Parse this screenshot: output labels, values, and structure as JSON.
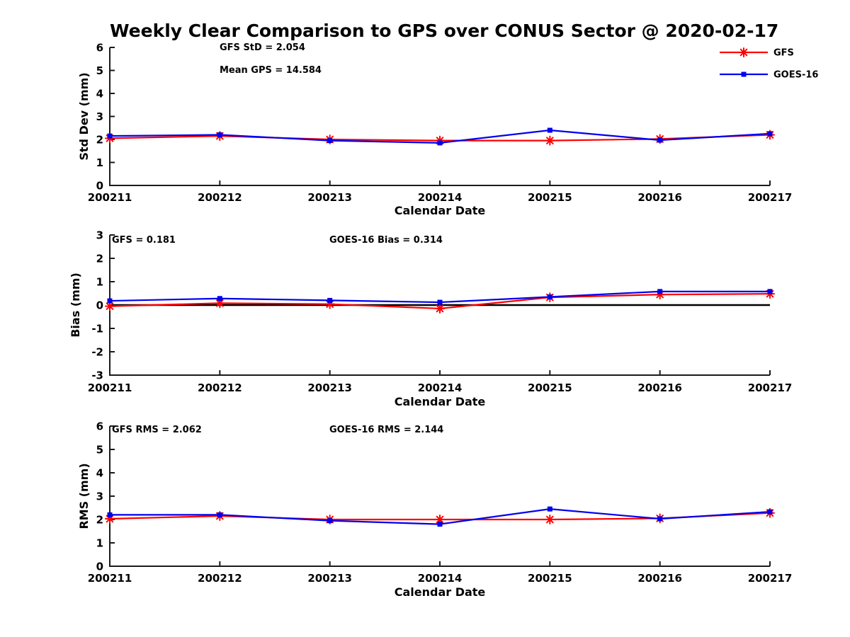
{
  "title": "Weekly Clear Comparison to GPS over CONUS Sector @ 2020-02-17",
  "colors": {
    "gfs": "#ff0000",
    "goes16": "#0000ee",
    "axis": "#1a1a1a",
    "zero_line": "#000000"
  },
  "legend": {
    "position": "top-right",
    "items": [
      {
        "label": "GFS",
        "color": "#ff0000",
        "marker": "asterisk"
      },
      {
        "label": "GOES-16",
        "color": "#0000ee",
        "marker": "square"
      }
    ]
  },
  "chart_data": [
    {
      "type": "line",
      "title": "",
      "xlabel": "Calendar Date",
      "ylabel": "Std Dev (mm)",
      "x": [
        "200211",
        "200212",
        "200213",
        "200214",
        "200215",
        "200216",
        "200217"
      ],
      "ylim": [
        0,
        6
      ],
      "yticks": [
        0,
        1,
        2,
        3,
        4,
        5,
        6
      ],
      "grid": false,
      "zero_line": false,
      "annotations": [
        "GFS StD = 2.054",
        "Mean GPS = 14.584"
      ],
      "series": [
        {
          "name": "GFS",
          "color": "#ff0000",
          "marker": "asterisk",
          "values": [
            2.05,
            2.15,
            2.0,
            1.95,
            1.95,
            2.02,
            2.2
          ]
        },
        {
          "name": "GOES-16",
          "color": "#0000ee",
          "marker": "square",
          "values": [
            2.15,
            2.2,
            1.95,
            1.85,
            2.4,
            1.97,
            2.25
          ]
        }
      ]
    },
    {
      "type": "line",
      "title": "",
      "xlabel": "Calendar Date",
      "ylabel": "Bias (mm)",
      "x": [
        "200211",
        "200212",
        "200213",
        "200214",
        "200215",
        "200216",
        "200217"
      ],
      "ylim": [
        -3,
        3
      ],
      "yticks": [
        -3,
        -2,
        -1,
        0,
        1,
        2,
        3
      ],
      "grid": false,
      "zero_line": true,
      "annotations": [
        "GFS = 0.181",
        "GOES-16 Bias  = 0.314"
      ],
      "series": [
        {
          "name": "GFS",
          "color": "#ff0000",
          "marker": "asterisk",
          "values": [
            -0.05,
            0.08,
            0.04,
            -0.15,
            0.33,
            0.45,
            0.48
          ]
        },
        {
          "name": "GOES-16",
          "color": "#0000ee",
          "marker": "square",
          "values": [
            0.18,
            0.28,
            0.2,
            0.12,
            0.35,
            0.58,
            0.58
          ]
        }
      ]
    },
    {
      "type": "line",
      "title": "",
      "xlabel": "Calendar Date",
      "ylabel": "RMS (mm)",
      "x": [
        "200211",
        "200212",
        "200213",
        "200214",
        "200215",
        "200216",
        "200217"
      ],
      "ylim": [
        0,
        6
      ],
      "yticks": [
        0,
        1,
        2,
        3,
        4,
        5,
        6
      ],
      "grid": false,
      "zero_line": false,
      "annotations": [
        "GFS RMS = 2.062",
        "GOES-16 RMS = 2.144"
      ],
      "series": [
        {
          "name": "GFS",
          "color": "#ff0000",
          "marker": "asterisk",
          "values": [
            2.03,
            2.15,
            2.0,
            2.0,
            2.0,
            2.05,
            2.28
          ]
        },
        {
          "name": "GOES-16",
          "color": "#0000ee",
          "marker": "square",
          "values": [
            2.2,
            2.2,
            1.95,
            1.8,
            2.45,
            2.03,
            2.33
          ]
        }
      ]
    }
  ]
}
